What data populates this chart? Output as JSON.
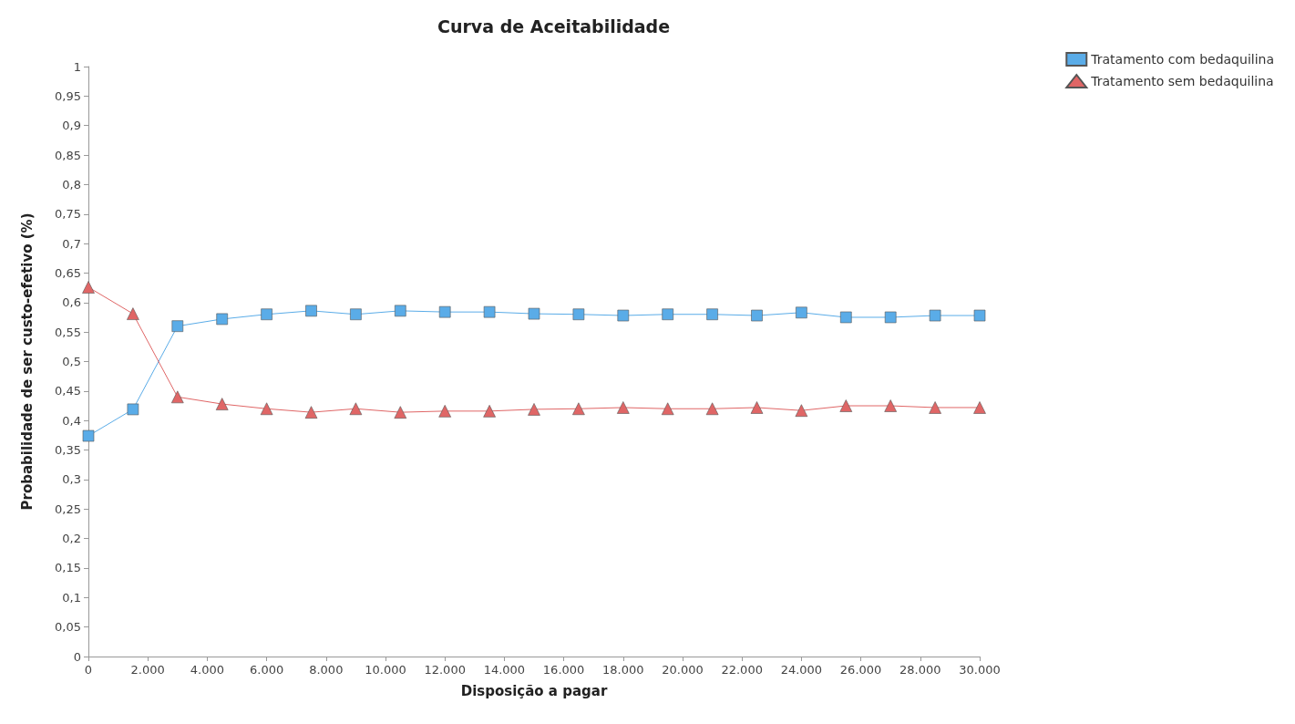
{
  "chart_data": {
    "type": "line",
    "title": "Curva de Aceitabilidade",
    "xlabel": "Disposição a pagar",
    "ylabel": "Probabilidade de ser custo-efetivo (%)",
    "x": [
      0,
      1500,
      3000,
      4500,
      6000,
      7500,
      9000,
      10500,
      12000,
      13500,
      15000,
      16500,
      18000,
      19500,
      21000,
      22500,
      24000,
      25500,
      27000,
      28500,
      30000
    ],
    "series": [
      {
        "name": "Tratamento com bedaquilina",
        "color": "#5aace8",
        "marker": "square",
        "values": [
          0.374,
          0.419,
          0.56,
          0.572,
          0.58,
          0.586,
          0.58,
          0.586,
          0.584,
          0.584,
          0.581,
          0.58,
          0.578,
          0.58,
          0.58,
          0.578,
          0.583,
          0.575,
          0.575,
          0.578,
          0.578
        ]
      },
      {
        "name": "Tratamento sem bedaquilina",
        "color": "#e06666",
        "marker": "triangle",
        "values": [
          0.626,
          0.581,
          0.44,
          0.428,
          0.42,
          0.414,
          0.42,
          0.414,
          0.416,
          0.416,
          0.419,
          0.42,
          0.422,
          0.42,
          0.42,
          0.422,
          0.417,
          0.425,
          0.425,
          0.422,
          0.422
        ]
      }
    ],
    "xlim": [
      0,
      30000
    ],
    "xticks": [
      0,
      {
        "value": 2000,
        "label": "2.000"
      },
      {
        "value": 4000,
        "label": "4.000"
      },
      {
        "value": 6000,
        "label": "6.000"
      },
      {
        "value": 8000,
        "label": "8.000"
      },
      {
        "value": 10000,
        "label": "10.000"
      },
      {
        "value": 12000,
        "label": "12.000"
      },
      {
        "value": 14000,
        "label": "14.000"
      },
      {
        "value": 16000,
        "label": "16.000"
      },
      {
        "value": 18000,
        "label": "18.000"
      },
      {
        "value": 20000,
        "label": "20.000"
      },
      {
        "value": 22000,
        "label": "22.000"
      },
      {
        "value": 24000,
        "label": "24.000"
      },
      {
        "value": 26000,
        "label": "26.000"
      },
      {
        "value": 28000,
        "label": "28.000"
      },
      {
        "value": 30000,
        "label": "30.000"
      }
    ],
    "ylim": [
      0,
      1
    ],
    "yticks": [
      0,
      {
        "value": 0.05,
        "label": "0,05"
      },
      {
        "value": 0.1,
        "label": "0,1"
      },
      {
        "value": 0.15,
        "label": "0,15"
      },
      {
        "value": 0.2,
        "label": "0,2"
      },
      {
        "value": 0.25,
        "label": "0,25"
      },
      {
        "value": 0.3,
        "label": "0,3"
      },
      {
        "value": 0.35,
        "label": "0,35"
      },
      {
        "value": 0.4,
        "label": "0,4"
      },
      {
        "value": 0.45,
        "label": "0,45"
      },
      {
        "value": 0.5,
        "label": "0,5"
      },
      {
        "value": 0.55,
        "label": "0,55"
      },
      {
        "value": 0.6,
        "label": "0,6"
      },
      {
        "value": 0.65,
        "label": "0,65"
      },
      {
        "value": 0.7,
        "label": "0,7"
      },
      {
        "value": 0.75,
        "label": "0,75"
      },
      {
        "value": 0.8,
        "label": "0,8"
      },
      {
        "value": 0.85,
        "label": "0,85"
      },
      {
        "value": 0.9,
        "label": "0,9"
      },
      {
        "value": 0.95,
        "label": "0,95"
      },
      1
    ],
    "grid": false,
    "legend": "top right",
    "line_style": "solid"
  }
}
